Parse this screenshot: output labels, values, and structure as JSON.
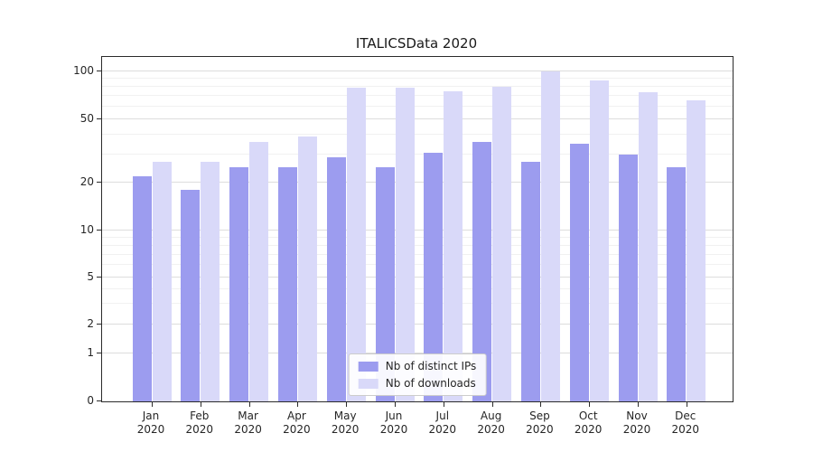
{
  "title": "ITALICSData 2020",
  "chart_data": {
    "type": "bar",
    "title": "ITALICSData 2020",
    "categories": [
      "Jan",
      "Feb",
      "Mar",
      "Apr",
      "May",
      "Jun",
      "Jul",
      "Aug",
      "Sep",
      "Oct",
      "Nov",
      "Dec"
    ],
    "year": "2020",
    "series": [
      {
        "name": "Nb of distinct IPs",
        "color": "#9c9cef",
        "values": [
          22,
          18,
          25,
          25,
          29,
          25,
          31,
          36,
          27,
          35,
          30,
          25
        ]
      },
      {
        "name": "Nb of downloads",
        "color": "#d9d9f9",
        "values": [
          27,
          27,
          36,
          39,
          79,
          79,
          75,
          80,
          100,
          88,
          74,
          66
        ]
      }
    ],
    "xlabel": "",
    "ylabel": "",
    "yscale": "symlog",
    "ylim": [
      0,
      100
    ],
    "yticks": [
      0,
      1,
      2,
      5,
      10,
      20,
      50,
      100
    ],
    "minor_yticks": [
      3,
      4,
      6,
      7,
      8,
      9,
      30,
      40,
      60,
      70,
      80,
      90
    ],
    "grid": true,
    "legend_position": "lower center"
  }
}
